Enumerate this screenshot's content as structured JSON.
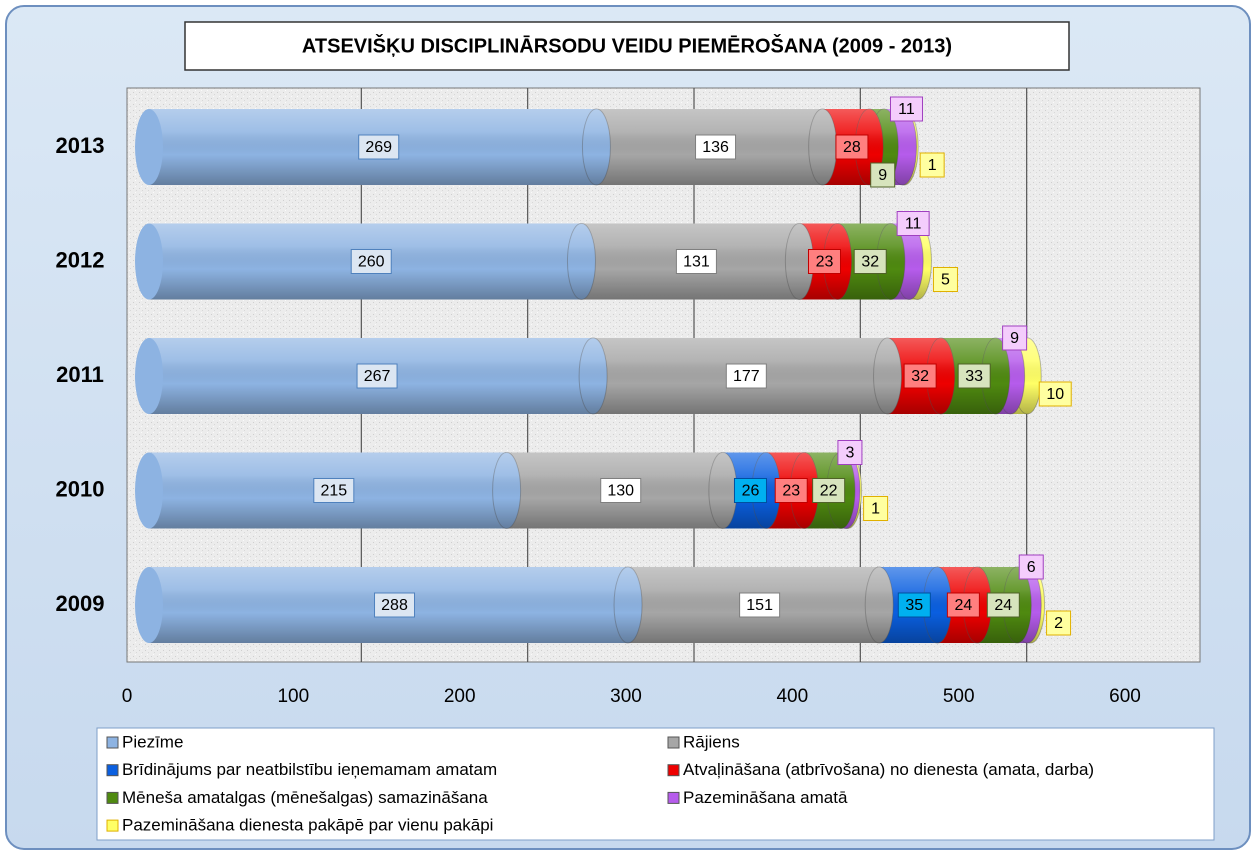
{
  "chart_data": {
    "type": "bar",
    "orientation": "horizontal",
    "stacked": true,
    "title": "ATSEVIŠĶU DISCIPLINĀRSODU VEIDU PIEMĒROŠANA (2009 - 2013)",
    "categories": [
      "2013",
      "2012",
      "2011",
      "2010",
      "2009"
    ],
    "series": [
      {
        "name": "Piezīme",
        "color": "#8db3e2",
        "values": [
          269,
          260,
          267,
          215,
          288
        ]
      },
      {
        "name": "Rājiens",
        "color": "#a6a6a6",
        "values": [
          136,
          131,
          177,
          130,
          151
        ]
      },
      {
        "name": "Brīdinājums par neatbilstību ieņemamam amatam",
        "color": "#0a5fe0",
        "values": [
          null,
          null,
          null,
          26,
          35
        ]
      },
      {
        "name": "Atvaļināšana (atbrīvošana) no dienesta (amata, darba)",
        "color": "#ee0000",
        "values": [
          28,
          23,
          32,
          23,
          24
        ]
      },
      {
        "name": "Mēneša amatalgas (mēnešalgas) samazināšana",
        "color": "#4f8a10",
        "values": [
          9,
          32,
          33,
          22,
          24
        ]
      },
      {
        "name": "Pazemināšana amatā",
        "color": "#b65cec",
        "values": [
          11,
          11,
          9,
          3,
          6
        ]
      },
      {
        "name": "Pazemināšana dienesta pakāpē par vienu pakāpi",
        "color": "#ffff66",
        "values": [
          1,
          5,
          10,
          1,
          2
        ]
      }
    ],
    "xlim": [
      0,
      600
    ],
    "xticks": [
      0,
      100,
      200,
      300,
      400,
      500,
      600
    ],
    "grid": true,
    "legend": "bottom"
  }
}
